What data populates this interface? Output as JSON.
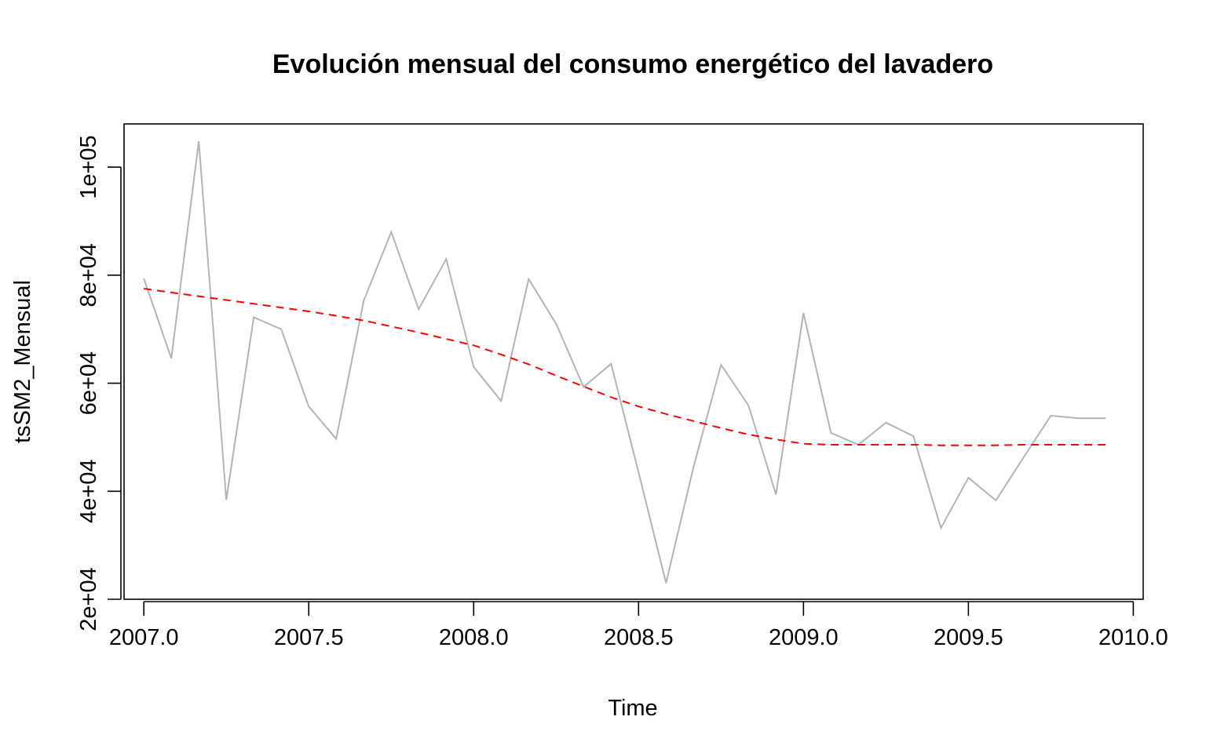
{
  "chart_data": {
    "type": "line",
    "title": "Evolución mensual del consumo energético del lavadero",
    "xlabel": "Time",
    "ylabel": "tsSM2_Mensual",
    "xlim": [
      2006.94,
      2010.03
    ],
    "ylim": [
      20000,
      108000
    ],
    "x_ticks": [
      {
        "value": 2007.0,
        "label": "2007.0"
      },
      {
        "value": 2007.5,
        "label": "2007.5"
      },
      {
        "value": 2008.0,
        "label": "2008.0"
      },
      {
        "value": 2008.5,
        "label": "2008.5"
      },
      {
        "value": 2009.0,
        "label": "2009.0"
      },
      {
        "value": 2009.5,
        "label": "2009.5"
      },
      {
        "value": 2010.0,
        "label": "2010.0"
      }
    ],
    "y_ticks": [
      {
        "value": 20000,
        "label": "2e+04"
      },
      {
        "value": 40000,
        "label": "4e+04"
      },
      {
        "value": 60000,
        "label": "6e+04"
      },
      {
        "value": 80000,
        "label": "8e+04"
      },
      {
        "value": 100000,
        "label": "1e+05"
      }
    ],
    "grid": false,
    "series": [
      {
        "role": "observed",
        "color": "#b3b3b3",
        "line_style": "solid",
        "x": [
          2007.0,
          2007.0833,
          2007.1667,
          2007.25,
          2007.3333,
          2007.4167,
          2007.5,
          2007.5833,
          2007.6667,
          2007.75,
          2007.8333,
          2007.9167,
          2008.0,
          2008.0833,
          2008.1667,
          2008.25,
          2008.3333,
          2008.4167,
          2008.5,
          2008.5833,
          2008.6667,
          2008.75,
          2008.8333,
          2008.9167,
          2009.0,
          2009.0833,
          2009.1667,
          2009.25,
          2009.3333,
          2009.4167,
          2009.5,
          2009.5833,
          2009.6667,
          2009.75,
          2009.8333,
          2009.9167
        ],
        "values": [
          79400,
          64600,
          104800,
          38400,
          72200,
          70000,
          55700,
          49700,
          75300,
          88000,
          73700,
          83000,
          63000,
          56700,
          79300,
          71000,
          59300,
          63600,
          43500,
          23000,
          44500,
          63400,
          55900,
          39400,
          73000,
          50800,
          48600,
          52700,
          50200,
          33200,
          42500,
          38300,
          46200,
          54000,
          53500,
          53500
        ]
      },
      {
        "role": "trend",
        "color": "#ff0000",
        "line_style": "dashed",
        "x": [
          2007.0,
          2007.0833,
          2007.1667,
          2007.25,
          2007.3333,
          2007.4167,
          2007.5,
          2007.5833,
          2007.6667,
          2007.75,
          2007.8333,
          2007.9167,
          2008.0,
          2008.0833,
          2008.1667,
          2008.25,
          2008.3333,
          2008.4167,
          2008.5,
          2008.5833,
          2008.6667,
          2008.75,
          2008.8333,
          2008.9167,
          2009.0,
          2009.0833,
          2009.1667,
          2009.25,
          2009.3333,
          2009.4167,
          2009.5,
          2009.5833,
          2009.6667,
          2009.75,
          2009.8333,
          2009.9167
        ],
        "values": [
          77500,
          76800,
          76100,
          75400,
          74700,
          74000,
          73300,
          72500,
          71600,
          70500,
          69400,
          68200,
          67000,
          65300,
          63500,
          61400,
          59400,
          57400,
          55700,
          54300,
          53000,
          51700,
          50500,
          49600,
          48800,
          48600,
          48600,
          48600,
          48600,
          48500,
          48500,
          48500,
          48600,
          48600,
          48600,
          48600
        ]
      }
    ]
  }
}
